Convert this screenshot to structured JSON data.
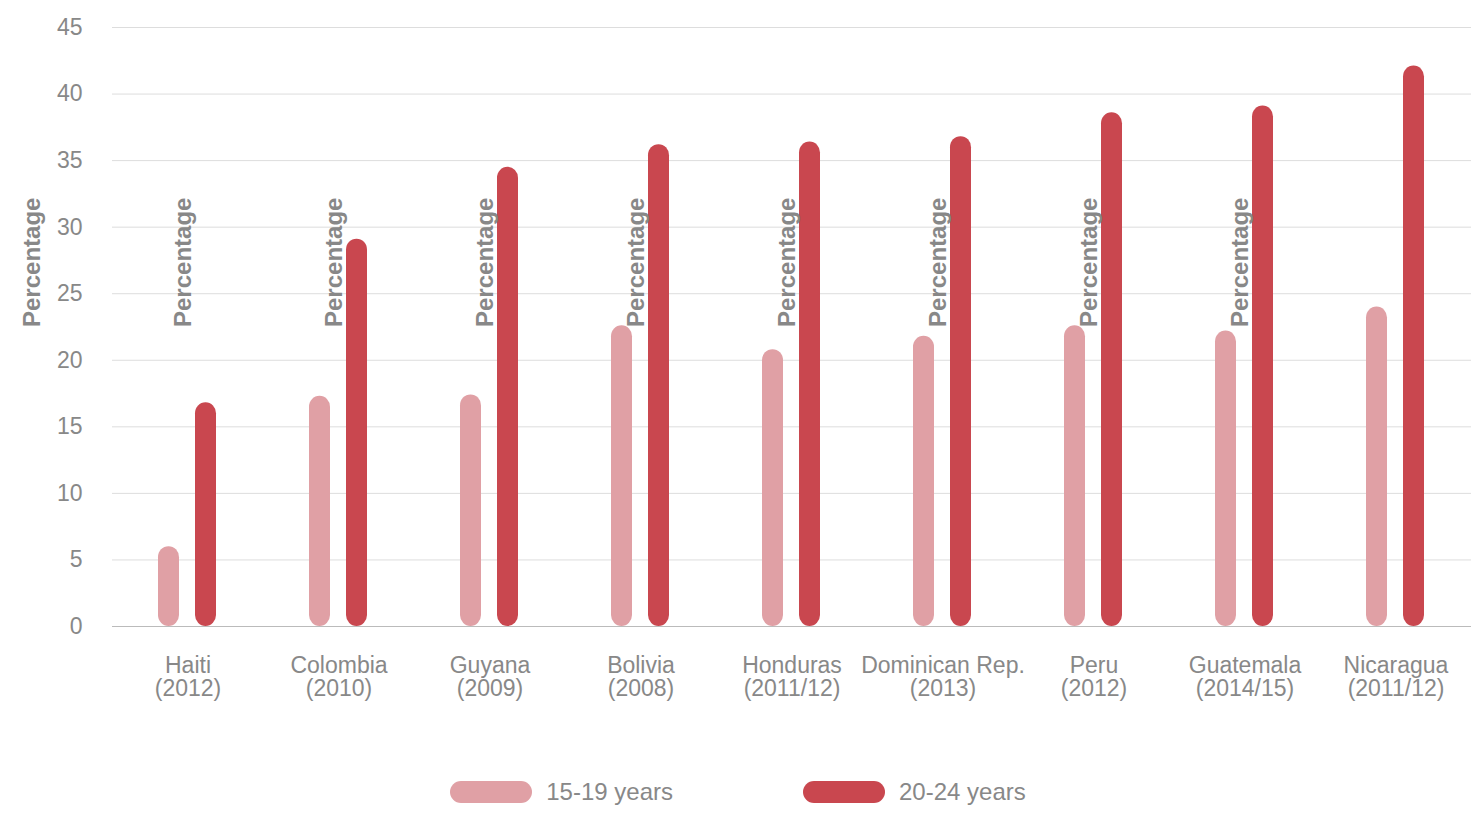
{
  "chart_data": {
    "type": "bar",
    "y_label": "Percentage",
    "categories": [
      "Haiti\n(2012)",
      "Colombia\n(2010)",
      "Guyana\n(2009)",
      "Bolivia\n(2008)",
      "Honduras\n(2011/12)",
      "Dominican Rep.\n(2013)",
      "Peru\n(2012)",
      "Guatemala\n(2014/15)",
      "Nicaragua\n(2011/12)"
    ],
    "series": [
      {
        "name": "15-19 years",
        "color": "#e0a0a5",
        "values": [
          6,
          17.3,
          17.4,
          22.6,
          20.8,
          21.8,
          22.6,
          22.2,
          24
        ]
      },
      {
        "name": "20-24 years",
        "color": "#c9474f",
        "values": [
          16.8,
          29.1,
          34.5,
          36.2,
          36.4,
          36.8,
          38.6,
          39.1,
          42.1
        ]
      }
    ],
    "ylim": [
      0,
      45
    ],
    "yticks": [
      0,
      5,
      10,
      15,
      20,
      25,
      30,
      35,
      40,
      45
    ],
    "grid": true,
    "legend": "bottom"
  }
}
